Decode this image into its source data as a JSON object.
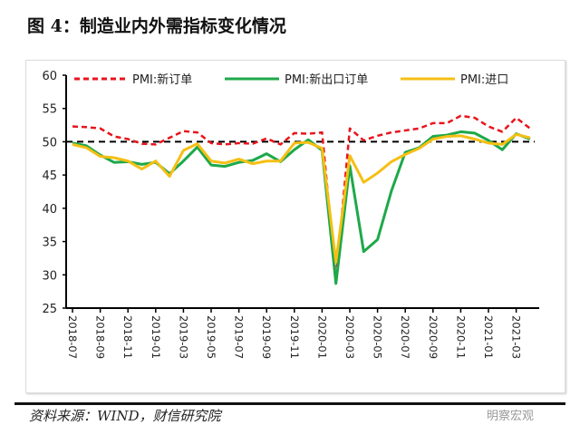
{
  "title": "图 4：制造业内外需指标变化情况",
  "source": "资料来源：WIND，财信研究院",
  "watermark": "明察宏观",
  "chart_data": {
    "type": "line",
    "title": "图 4：制造业内外需指标变化情况",
    "x": [
      "2018-07",
      "2018-08",
      "2018-09",
      "2018-10",
      "2018-11",
      "2018-12",
      "2019-01",
      "2019-02",
      "2019-03",
      "2019-04",
      "2019-05",
      "2019-06",
      "2019-07",
      "2019-08",
      "2019-09",
      "2019-10",
      "2019-11",
      "2019-12",
      "2020-01",
      "2020-02",
      "2020-03",
      "2020-04",
      "2020-05",
      "2020-06",
      "2020-07",
      "2020-08",
      "2020-09",
      "2020-10",
      "2020-11",
      "2020-12",
      "2021-01",
      "2021-02",
      "2021-03",
      "2021-04"
    ],
    "tick_labels": [
      "2018-07",
      "2018-09",
      "2018-11",
      "2019-01",
      "2019-03",
      "2019-05",
      "2019-07",
      "2019-09",
      "2019-11",
      "2020-01",
      "2020-03",
      "2020-05",
      "2020-07",
      "2020-09",
      "2020-11",
      "2021-01",
      "2021-03"
    ],
    "yticks": [
      25,
      30,
      35,
      40,
      45,
      50,
      55,
      60
    ],
    "ylim": [
      25,
      60
    ],
    "reference_line": 50,
    "legend_position": "top",
    "series": [
      {
        "name": "PMI:新订单",
        "color": "#e8141c",
        "dash": true,
        "values": [
          52.3,
          52.2,
          52.0,
          50.8,
          50.4,
          49.7,
          49.6,
          50.6,
          51.6,
          51.4,
          49.8,
          49.6,
          49.8,
          49.7,
          50.5,
          49.6,
          51.3,
          51.2,
          51.4,
          29.3,
          52.0,
          50.2,
          50.9,
          51.4,
          51.7,
          52.0,
          52.8,
          52.8,
          53.9,
          53.6,
          52.3,
          51.5,
          53.6,
          52.0
        ]
      },
      {
        "name": "PMI:新出口订单",
        "color": "#1ea84a",
        "dash": false,
        "values": [
          49.8,
          49.4,
          48.0,
          46.9,
          47.0,
          46.6,
          46.9,
          45.2,
          47.1,
          49.2,
          46.5,
          46.3,
          46.9,
          47.2,
          48.2,
          47.0,
          48.8,
          50.3,
          48.7,
          28.7,
          46.4,
          33.5,
          35.3,
          42.6,
          48.4,
          49.1,
          50.8,
          51.0,
          51.5,
          51.3,
          50.2,
          48.8,
          51.2,
          50.4
        ]
      },
      {
        "name": "PMI:进口",
        "color": "#f5bf14",
        "dash": false,
        "values": [
          49.6,
          49.1,
          47.8,
          47.6,
          47.1,
          45.9,
          47.1,
          44.8,
          48.7,
          49.7,
          47.1,
          46.8,
          47.4,
          46.7,
          47.1,
          47.1,
          49.8,
          49.9,
          49.0,
          31.9,
          47.9,
          43.9,
          45.3,
          47.0,
          48.1,
          49.0,
          50.4,
          50.8,
          50.9,
          50.4,
          49.8,
          49.6,
          51.1,
          50.6
        ]
      }
    ]
  }
}
